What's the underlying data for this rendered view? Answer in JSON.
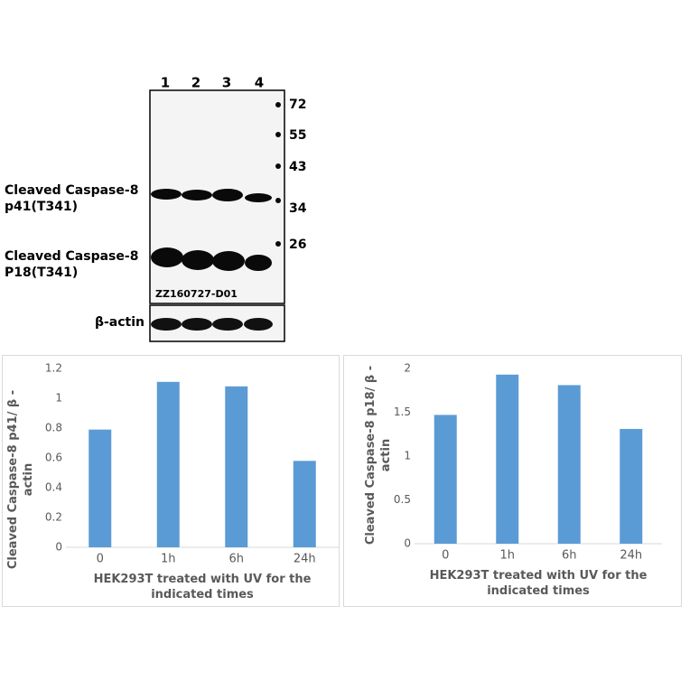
{
  "blot": {
    "lanes": [
      "1",
      "2",
      "3",
      "4"
    ],
    "markers": [
      "72",
      "55",
      "43",
      "34",
      "26"
    ],
    "labels": [
      [
        "Cleaved Caspase-8",
        "p41(T341)"
      ],
      [
        "Cleaved Caspase-8",
        "P18(T341)"
      ]
    ],
    "code": "ZZ160727-D01",
    "control": "β-actin"
  },
  "chart_data": [
    {
      "type": "bar",
      "ylabel": "Cleaved Caspase-8 p41/ β -actin",
      "xlabel": "HEK293T treated with UV for the indicated times",
      "categories": [
        "0",
        "1h",
        "6h",
        "24h"
      ],
      "values": [
        0.79,
        1.11,
        1.08,
        0.58
      ],
      "color": "#5b9bd5",
      "ylim": [
        0,
        1.2
      ],
      "yticks": [
        0,
        0.2,
        0.4,
        0.6,
        0.8,
        1,
        1.2
      ]
    },
    {
      "type": "bar",
      "ylabel": "Cleaved Caspase-8 p18/ β -actin",
      "xlabel": "HEK293T treated with UV for the indicated times",
      "categories": [
        "0",
        "1h",
        "6h",
        "24h"
      ],
      "values": [
        1.47,
        1.93,
        1.81,
        1.31
      ],
      "color": "#5b9bd5",
      "ylim": [
        0,
        2
      ],
      "yticks": [
        0,
        0.5,
        1,
        1.5,
        2
      ]
    }
  ]
}
